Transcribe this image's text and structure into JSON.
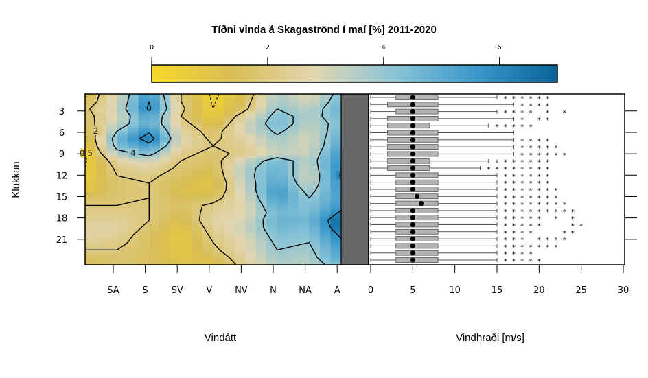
{
  "chart_data": [
    {
      "type": "heatmap",
      "title": "Tíðni vinda á Skagaströnd í maí [%] 2011-2020",
      "xlabel": "Vindátt",
      "ylabel": "Klukkan",
      "x_ticks": [
        "SA",
        "S",
        "SV",
        "V",
        "NV",
        "N",
        "NA",
        "A"
      ],
      "y_ticks": [
        "3",
        "6",
        "9",
        "12",
        "15",
        "18",
        "21"
      ],
      "colorbar": {
        "ticks": [
          "0",
          "2",
          "4",
          "6"
        ],
        "range": [
          0,
          7
        ],
        "colors": [
          "#f7d826",
          "#d8bd55",
          "#e2d6b0",
          "#8ac4d6",
          "#3a98cb",
          "#07639a"
        ]
      },
      "contour_labels": [
        "0.5",
        "2",
        "4",
        "6"
      ],
      "hours": [
        1,
        2,
        3,
        4,
        5,
        6,
        7,
        8,
        9,
        10,
        11,
        12,
        13,
        14,
        15,
        16,
        17,
        18,
        19,
        20,
        21,
        22,
        23,
        24
      ],
      "calm_color": "#666666",
      "frequency_pct": [
        [
          1.2,
          3.0,
          5.6,
          2.0,
          0.3,
          1.4,
          3.6,
          2.8,
          4.4
        ],
        [
          1.4,
          3.0,
          6.0,
          2.0,
          0.4,
          1.6,
          3.8,
          3.0,
          4.6
        ],
        [
          1.8,
          3.2,
          6.2,
          2.2,
          0.5,
          1.8,
          4.0,
          3.4,
          4.8
        ],
        [
          1.6,
          3.0,
          5.4,
          2.0,
          0.6,
          2.6,
          4.4,
          3.6,
          4.6
        ],
        [
          1.4,
          3.4,
          5.0,
          2.4,
          1.0,
          3.0,
          4.6,
          3.4,
          4.4
        ],
        [
          1.0,
          4.0,
          5.8,
          2.6,
          1.6,
          3.0,
          4.2,
          3.2,
          4.6
        ],
        [
          0.8,
          4.6,
          6.6,
          2.8,
          1.8,
          2.6,
          3.8,
          3.0,
          5.0
        ],
        [
          0.6,
          4.4,
          5.6,
          2.6,
          2.0,
          2.4,
          3.6,
          3.0,
          5.2
        ],
        [
          0.4,
          3.6,
          4.4,
          2.2,
          1.8,
          2.2,
          3.2,
          3.2,
          5.6
        ],
        [
          0.4,
          2.6,
          3.2,
          2.0,
          1.6,
          3.2,
          4.6,
          3.4,
          5.8
        ],
        [
          0.5,
          2.2,
          2.6,
          1.8,
          1.4,
          3.6,
          4.8,
          3.2,
          6.0
        ],
        [
          0.6,
          2.0,
          2.2,
          1.6,
          1.2,
          3.6,
          5.0,
          3.0,
          6.0
        ],
        [
          0.8,
          1.8,
          2.0,
          1.4,
          1.0,
          3.4,
          5.2,
          3.2,
          5.8
        ],
        [
          1.0,
          1.8,
          2.0,
          1.2,
          1.2,
          3.2,
          5.6,
          3.6,
          5.6
        ],
        [
          1.6,
          1.8,
          2.0,
          1.4,
          1.6,
          3.0,
          5.4,
          4.0,
          5.4
        ],
        [
          2.0,
          2.0,
          2.0,
          1.6,
          2.2,
          2.8,
          5.0,
          4.2,
          5.6
        ],
        [
          2.2,
          2.2,
          2.0,
          1.4,
          2.4,
          2.8,
          4.6,
          4.4,
          6.2
        ],
        [
          2.4,
          2.4,
          2.0,
          1.2,
          2.6,
          3.0,
          4.8,
          4.6,
          7.0
        ],
        [
          2.6,
          2.6,
          1.8,
          1.0,
          2.4,
          3.2,
          4.6,
          4.4,
          6.8
        ],
        [
          2.6,
          2.4,
          1.6,
          0.8,
          2.2,
          3.0,
          4.4,
          4.2,
          6.2
        ],
        [
          2.4,
          2.2,
          1.6,
          0.8,
          2.0,
          2.8,
          4.2,
          4.0,
          5.8
        ],
        [
          2.0,
          2.0,
          1.6,
          0.9,
          1.8,
          2.8,
          4.0,
          3.8,
          5.4
        ],
        [
          1.6,
          1.8,
          1.6,
          1.0,
          1.4,
          2.6,
          3.8,
          3.6,
          5.2
        ],
        [
          1.4,
          1.8,
          1.6,
          1.2,
          1.0,
          2.4,
          3.6,
          3.4,
          4.6
        ]
      ]
    },
    {
      "type": "box",
      "xlabel": "Vindhraði [m/s]",
      "x_ticks": [
        "0",
        "5",
        "10",
        "15",
        "20",
        "25",
        "30"
      ],
      "xlim": [
        0,
        30
      ],
      "hours": [
        1,
        2,
        3,
        4,
        5,
        6,
        7,
        8,
        9,
        10,
        11,
        12,
        13,
        14,
        15,
        16,
        17,
        18,
        19,
        20,
        21,
        22,
        23,
        24
      ],
      "boxes": [
        {
          "hour": 1,
          "whisker_low": 0,
          "q1": 3,
          "median": 5,
          "q3": 8,
          "whisker_high": 15,
          "outliers": [
            16,
            17,
            18,
            19,
            20,
            21
          ]
        },
        {
          "hour": 2,
          "whisker_low": 0,
          "q1": 2,
          "median": 5,
          "q3": 8,
          "whisker_high": 17,
          "outliers": [
            18,
            19,
            20,
            21
          ]
        },
        {
          "hour": 3,
          "whisker_low": 0,
          "q1": 3,
          "median": 5,
          "q3": 8,
          "whisker_high": 15,
          "outliers": [
            16,
            17,
            18,
            19,
            21,
            23
          ]
        },
        {
          "hour": 4,
          "whisker_low": 0,
          "q1": 2,
          "median": 5,
          "q3": 8,
          "whisker_high": 17,
          "outliers": [
            18,
            20,
            21
          ]
        },
        {
          "hour": 5,
          "whisker_low": 0,
          "q1": 2,
          "median": 5,
          "q3": 7,
          "whisker_high": 14,
          "outliers": [
            15,
            16,
            17,
            18,
            19
          ]
        },
        {
          "hour": 6,
          "whisker_low": 0,
          "q1": 2,
          "median": 5,
          "q3": 8,
          "whisker_high": 17,
          "outliers": []
        },
        {
          "hour": 7,
          "whisker_low": 0,
          "q1": 2,
          "median": 5,
          "q3": 8,
          "whisker_high": 17,
          "outliers": [
            18,
            19,
            20,
            21
          ]
        },
        {
          "hour": 8,
          "whisker_low": 0,
          "q1": 2,
          "median": 5,
          "q3": 8,
          "whisker_high": 17,
          "outliers": [
            18,
            19,
            20,
            21,
            22
          ]
        },
        {
          "hour": 9,
          "whisker_low": 0,
          "q1": 2,
          "median": 5,
          "q3": 8,
          "whisker_high": 17,
          "outliers": [
            18,
            19,
            20,
            21,
            22,
            23
          ]
        },
        {
          "hour": 10,
          "whisker_low": 0,
          "q1": 2,
          "median": 5,
          "q3": 7,
          "whisker_high": 14,
          "outliers": [
            15,
            16,
            17,
            18,
            19,
            20,
            21
          ]
        },
        {
          "hour": 11,
          "whisker_low": 0,
          "q1": 2,
          "median": 5,
          "q3": 7,
          "whisker_high": 13,
          "outliers": [
            14,
            15,
            16,
            17,
            18,
            19,
            20,
            21
          ]
        },
        {
          "hour": 12,
          "whisker_low": 0,
          "q1": 3,
          "median": 5,
          "q3": 8,
          "whisker_high": 15,
          "outliers": [
            16,
            17,
            18,
            19,
            20,
            21
          ]
        },
        {
          "hour": 13,
          "whisker_low": 0,
          "q1": 3,
          "median": 5,
          "q3": 8,
          "whisker_high": 15,
          "outliers": [
            16,
            17,
            18,
            19,
            20,
            21
          ]
        },
        {
          "hour": 14,
          "whisker_low": 0,
          "q1": 3,
          "median": 5,
          "q3": 8,
          "whisker_high": 15,
          "outliers": [
            16,
            17,
            18,
            19,
            20,
            21,
            22
          ]
        },
        {
          "hour": 15,
          "whisker_low": 0,
          "q1": 3,
          "median": 5.5,
          "q3": 8,
          "whisker_high": 15,
          "outliers": [
            16,
            17,
            18,
            19,
            20,
            21,
            22
          ]
        },
        {
          "hour": 16,
          "whisker_low": 0,
          "q1": 3,
          "median": 6,
          "q3": 8,
          "whisker_high": 15,
          "outliers": [
            16,
            17,
            18,
            19,
            20,
            21,
            22,
            23
          ]
        },
        {
          "hour": 17,
          "whisker_low": 0,
          "q1": 3,
          "median": 5,
          "q3": 8,
          "whisker_high": 15,
          "outliers": [
            16,
            17,
            18,
            19,
            20,
            21,
            22,
            23,
            24
          ]
        },
        {
          "hour": 18,
          "whisker_low": 0,
          "q1": 3,
          "median": 5,
          "q3": 8,
          "whisker_high": 15,
          "outliers": [
            16,
            17,
            18,
            19,
            20,
            22,
            24
          ]
        },
        {
          "hour": 19,
          "whisker_low": 0,
          "q1": 3,
          "median": 5,
          "q3": 8,
          "whisker_high": 15,
          "outliers": [
            16,
            17,
            18,
            19,
            20,
            24,
            25
          ]
        },
        {
          "hour": 20,
          "whisker_low": 0,
          "q1": 3,
          "median": 5,
          "q3": 8,
          "whisker_high": 15,
          "outliers": [
            16,
            17,
            18,
            19,
            23,
            24
          ]
        },
        {
          "hour": 21,
          "whisker_low": 0,
          "q1": 3,
          "median": 5,
          "q3": 8,
          "whisker_high": 15,
          "outliers": [
            16,
            17,
            18,
            20,
            21,
            22,
            23
          ]
        },
        {
          "hour": 22,
          "whisker_low": 0,
          "q1": 3,
          "median": 5,
          "q3": 8,
          "whisker_high": 15,
          "outliers": [
            16,
            17,
            18,
            19,
            20,
            21,
            22
          ]
        },
        {
          "hour": 23,
          "whisker_low": 0,
          "q1": 3,
          "median": 5,
          "q3": 8,
          "whisker_high": 15,
          "outliers": [
            16,
            17,
            18,
            19
          ]
        },
        {
          "hour": 24,
          "whisker_low": 0,
          "q1": 3,
          "median": 5,
          "q3": 8,
          "whisker_high": 15,
          "outliers": [
            16,
            17,
            18,
            19,
            20
          ]
        }
      ]
    }
  ]
}
